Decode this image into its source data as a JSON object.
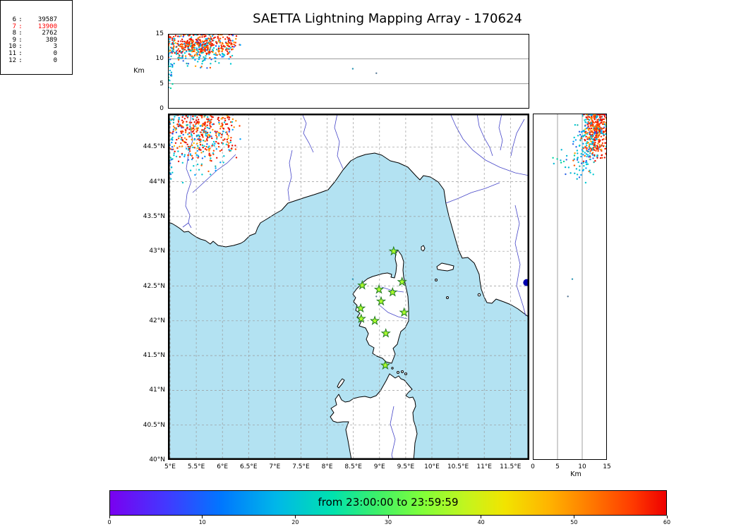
{
  "title": "SAETTA Lightning Mapping Array - 170624",
  "alt_panel": {
    "ylabel": "Km",
    "yticks": [
      0,
      5,
      10,
      15
    ],
    "alt_max": 15,
    "grid_km": [
      5,
      10
    ]
  },
  "right_panel": {
    "xlabel": "Km",
    "xticks": [
      0,
      5,
      10,
      15
    ],
    "alt_max": 15,
    "grid_km": [
      5,
      10
    ]
  },
  "map": {
    "sea_color": "#b3e2f2",
    "land_color": "#ffffff",
    "coast_color": "#000000",
    "river_color": "#4646c8",
    "lat_ticks": [
      {
        "v": 44.5,
        "label": "44.5°N"
      },
      {
        "v": 44.0,
        "label": "44°N"
      },
      {
        "v": 43.5,
        "label": "43.5°N"
      },
      {
        "v": 43.0,
        "label": "43°N"
      },
      {
        "v": 42.5,
        "label": "42.5°N"
      },
      {
        "v": 42.0,
        "label": "42°N"
      },
      {
        "v": 41.5,
        "label": "41.5°N"
      },
      {
        "v": 41.0,
        "label": "41°N"
      },
      {
        "v": 40.5,
        "label": "40.5°N"
      },
      {
        "v": 40.0,
        "label": "40°N"
      }
    ],
    "lon_ticks": [
      {
        "v": 5.0,
        "label": "5°E"
      },
      {
        "v": 5.5,
        "label": "5.5°E"
      },
      {
        "v": 6.0,
        "label": "6°E"
      },
      {
        "v": 6.5,
        "label": "6.5°E"
      },
      {
        "v": 7.0,
        "label": "7°E"
      },
      {
        "v": 7.5,
        "label": "7.5°E"
      },
      {
        "v": 8.0,
        "label": "8°E"
      },
      {
        "v": 8.5,
        "label": "8.5°E"
      },
      {
        "v": 9.0,
        "label": "9°E"
      },
      {
        "v": 9.5,
        "label": "9.5°E"
      },
      {
        "v": 10.0,
        "label": "10°E"
      },
      {
        "v": 10.5,
        "label": "10.5°E"
      },
      {
        "v": 11.0,
        "label": "11°E"
      },
      {
        "v": 11.5,
        "label": "11.5°E"
      }
    ]
  },
  "colorbar": {
    "label": "from 23:00:00 to 23:59:59",
    "ticks": [
      0,
      10,
      20,
      30,
      40,
      50,
      60
    ],
    "max": 60,
    "gradient": [
      "#7a00f0 0%",
      "#4338ff 10%",
      "#0077ff 20%",
      "#00b8e8 30%",
      "#00e2ae 40%",
      "#3df06a 48%",
      "#7fff3a 56%",
      "#c3f51e 64%",
      "#f2e400 71%",
      "#ffb300 79%",
      "#ff7500 87%",
      "#ff3a00 94%",
      "#ee0000 100%"
    ]
  },
  "chart_data": {
    "type": "scatter",
    "title": "SAETTA Lightning Mapping Array - 170624",
    "date_yymmdd": "170624",
    "time_window": {
      "start": "23:00:00",
      "end": "23:59:59"
    },
    "colorbar_minutes_range": [
      0,
      60
    ],
    "axes": {
      "lon_range_deg_e": [
        4.96,
        11.86
      ],
      "lat_range_deg_n": [
        40.0,
        44.98
      ],
      "alt_range_km": [
        0,
        15
      ]
    },
    "panels": [
      "altitude_vs_longitude",
      "map_lat_vs_lon",
      "altitude_vs_latitude",
      "sources_per_min_stations"
    ],
    "sources_per_min_stations": [
      {
        "stations": "6",
        "count": "39587",
        "color": "#000000"
      },
      {
        "stations": "7",
        "count": "13900",
        "color": "#ff0000"
      },
      {
        "stations": "8",
        "count": "2762",
        "color": "#000000"
      },
      {
        "stations": "9",
        "count": "389",
        "color": "#000000"
      },
      {
        "stations": "10",
        "count": "3",
        "color": "#000000"
      },
      {
        "stations": "11",
        "count": "0",
        "color": "#000000"
      },
      {
        "stations": "12",
        "count": "0",
        "color": "#000000"
      }
    ],
    "lma_stations_lon_lat": [
      [
        9.27,
        43.0
      ],
      [
        8.67,
        42.51
      ],
      [
        8.99,
        42.45
      ],
      [
        9.25,
        42.41
      ],
      [
        9.43,
        42.56
      ],
      [
        8.64,
        42.18
      ],
      [
        9.03,
        42.28
      ],
      [
        8.65,
        42.03
      ],
      [
        8.91,
        42.0
      ],
      [
        9.47,
        42.12
      ],
      [
        9.12,
        41.82
      ],
      [
        9.11,
        41.36
      ]
    ],
    "clusters": [
      {
        "name": "storm-cell-core-late-times",
        "description": "dense red/orange cell, NW map corner, 5.0-6.3E / 44.3-45.0N / 10-15 km",
        "count": 450,
        "lon_c": 5.55,
        "lon_s": 0.48,
        "lat_c": 44.78,
        "lat_s": 0.3,
        "alt_c": 12.9,
        "alt_s": 1.7,
        "palette": [
          {
            "c": "#e81000",
            "w": 0.42
          },
          {
            "c": "#ff4500",
            "w": 0.2
          },
          {
            "c": "#ff8c00",
            "w": 0.12
          },
          {
            "c": "#ffc400",
            "w": 0.06
          },
          {
            "c": "#00c0d8",
            "w": 0.1
          },
          {
            "c": "#00a2ff",
            "w": 0.06
          },
          {
            "c": "#2850ff",
            "w": 0.04
          }
        ]
      },
      {
        "name": "storm-cell-fringe-mid-times",
        "description": "cyan/blue fringe below and around the red core, 8-13 km",
        "count": 110,
        "lon_c": 5.4,
        "lon_s": 0.5,
        "lat_c": 44.48,
        "lat_s": 0.33,
        "alt_c": 10.6,
        "alt_s": 1.5,
        "palette": [
          {
            "c": "#00c8d2",
            "w": 0.4
          },
          {
            "c": "#20b2aa",
            "w": 0.15
          },
          {
            "c": "#00a2ff",
            "w": 0.2
          },
          {
            "c": "#2e64e6",
            "w": 0.1
          },
          {
            "c": "#ff5a00",
            "w": 0.1
          },
          {
            "c": "#ffa000",
            "w": 0.05
          }
        ]
      },
      {
        "name": "west-edge-low-alt",
        "description": "sparse cyan points hugging the 5E edge at lower altitude",
        "count": 24,
        "lon_c": 5.0,
        "lon_s": 0.1,
        "lat_c": 44.3,
        "lat_s": 0.2,
        "alt_c": 7.5,
        "alt_s": 2.6,
        "palette": [
          {
            "c": "#00b8d4",
            "w": 0.5
          },
          {
            "c": "#2e64e6",
            "w": 0.3
          },
          {
            "c": "#00d2a0",
            "w": 0.2
          }
        ]
      }
    ],
    "single_sources": [
      {
        "lon": 8.49,
        "lat": 42.6,
        "alt": 8.0,
        "color": "#2e96b4"
      },
      {
        "lon": 8.94,
        "lat": 42.35,
        "alt": 7.1,
        "color": "#5a7a96"
      }
    ],
    "dense_spot": {
      "description": "dark navy dense dot on Italian coast, map only",
      "lon": 11.81,
      "lat": 42.55,
      "radius_px": 5,
      "color": "#0000b0"
    },
    "station_marker_style": {
      "fill": "#adff2f",
      "stroke": "#1f7a1f"
    }
  }
}
